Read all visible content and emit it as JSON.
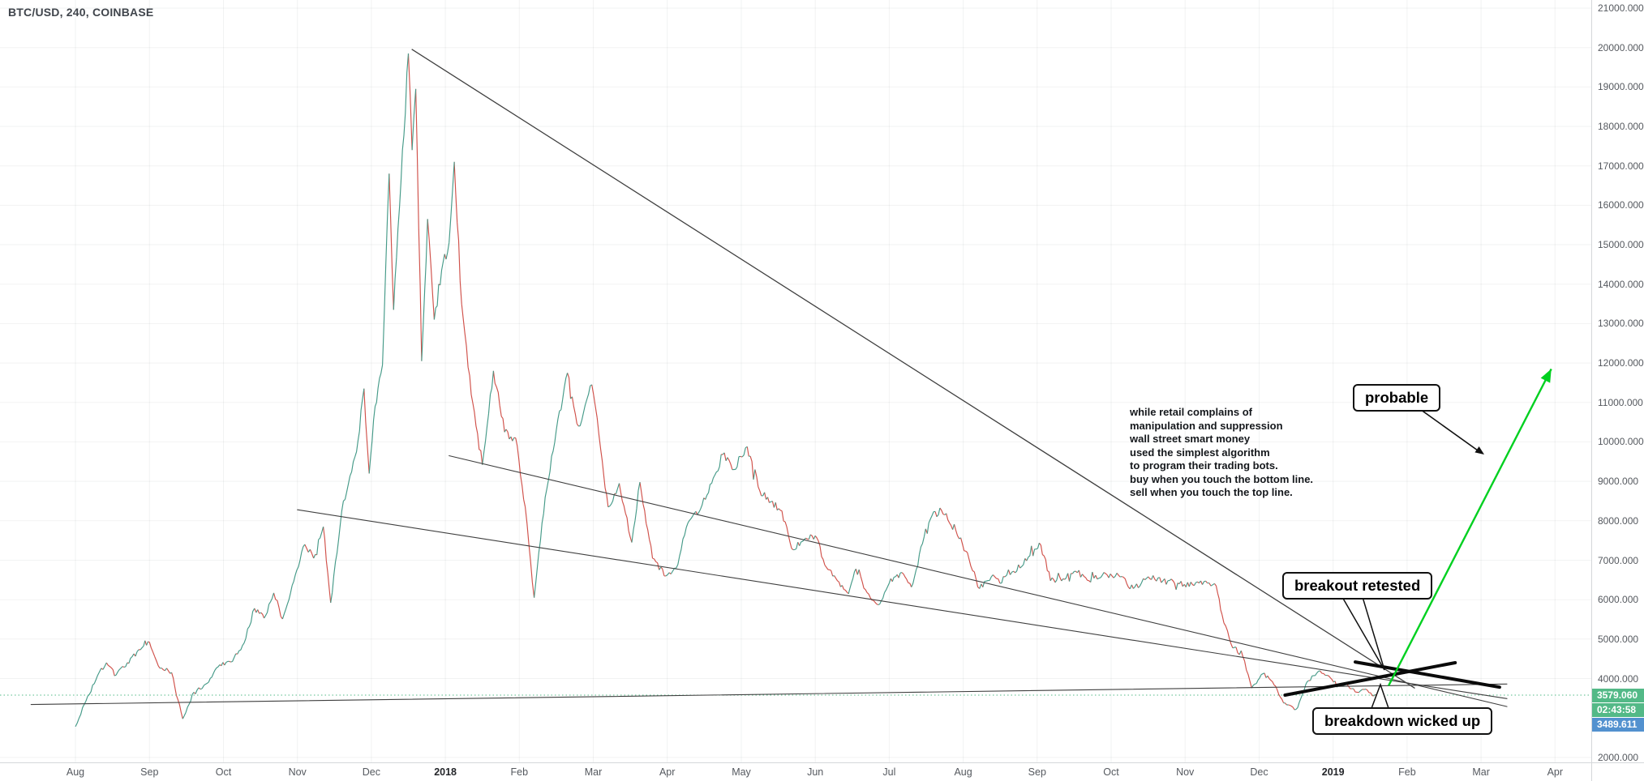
{
  "header": {
    "symbol_line": "BTC/USD, 240, COINBASE"
  },
  "colors": {
    "candle_up": "#459a88",
    "candle_down": "#d05049",
    "trendline_gray": "#3f3f3f",
    "trendline_black": "#0a0a0a",
    "arrow_green": "#00d020",
    "last_price_teal": "#53b987",
    "secondary_blue": "#5291cf",
    "axis_text": "#55595f",
    "grid": "rgba(42,46,57,0.06)"
  },
  "annotations": {
    "probable": "probable",
    "breakout": "breakout retested",
    "breakdown": "breakdown wicked up",
    "note_lines": [
      "while retail complains of",
      "manipulation and suppression",
      "wall street smart money",
      "used the simplest algorithm",
      "to program their trading bots.",
      "buy when you touch the bottom line.",
      "sell when you touch the top line."
    ]
  },
  "price_scale": {
    "last_price_label": "3579.060",
    "countdown_label": "02:43:58",
    "secondary_label": "3489.611",
    "ticks": [
      {
        "label": "21000.000",
        "p": 21000
      },
      {
        "label": "20000.000",
        "p": 20000
      },
      {
        "label": "19000.000",
        "p": 19000
      },
      {
        "label": "18000.000",
        "p": 18000
      },
      {
        "label": "17000.000",
        "p": 17000
      },
      {
        "label": "16000.000",
        "p": 16000
      },
      {
        "label": "15000.000",
        "p": 15000
      },
      {
        "label": "14000.000",
        "p": 14000
      },
      {
        "label": "13000.000",
        "p": 13000
      },
      {
        "label": "12000.000",
        "p": 12000
      },
      {
        "label": "11000.000",
        "p": 11000
      },
      {
        "label": "10000.000",
        "p": 10000
      },
      {
        "label": "9000.000",
        "p": 9000
      },
      {
        "label": "8000.000",
        "p": 8000
      },
      {
        "label": "7000.000",
        "p": 7000
      },
      {
        "label": "6000.000",
        "p": 6000
      },
      {
        "label": "5000.000",
        "p": 5000
      },
      {
        "label": "4000.000",
        "p": 4000
      },
      {
        "label": "2000.000",
        "p": 2000
      }
    ]
  },
  "time_scale": {
    "ticks": [
      {
        "label": "Aug",
        "m": 0
      },
      {
        "label": "Sep",
        "m": 1
      },
      {
        "label": "Oct",
        "m": 2
      },
      {
        "label": "Nov",
        "m": 3
      },
      {
        "label": "Dec",
        "m": 4
      },
      {
        "label": "2018",
        "m": 5,
        "strong": true
      },
      {
        "label": "Feb",
        "m": 6
      },
      {
        "label": "Mar",
        "m": 7
      },
      {
        "label": "Apr",
        "m": 8
      },
      {
        "label": "May",
        "m": 9
      },
      {
        "label": "Jun",
        "m": 10
      },
      {
        "label": "Jul",
        "m": 11
      },
      {
        "label": "Aug",
        "m": 12
      },
      {
        "label": "Sep",
        "m": 13
      },
      {
        "label": "Oct",
        "m": 14
      },
      {
        "label": "Nov",
        "m": 15
      },
      {
        "label": "Dec",
        "m": 16
      },
      {
        "label": "2019",
        "m": 17,
        "strong": true
      },
      {
        "label": "Feb",
        "m": 18
      },
      {
        "label": "Mar",
        "m": 19
      },
      {
        "label": "Apr",
        "m": 20
      }
    ]
  },
  "chart_data": {
    "type": "line",
    "style": "candlestick",
    "title": "BTC/USD, 240, COINBASE",
    "x_unit": "months since 2017-08-01",
    "xlim": [
      -1.02,
      20.49
    ],
    "ylim": [
      1874,
      21205
    ],
    "grid": "faint",
    "legend_position": "none",
    "last_price": 3579.06,
    "current_price_line": {
      "price": 3579.06,
      "style": "dotted",
      "color": "#53b987"
    },
    "series": [
      {
        "name": "BTC/USD",
        "points": [
          [
            0,
            2780
          ],
          [
            0.12,
            3350
          ],
          [
            0.3,
            4080
          ],
          [
            0.42,
            4400
          ],
          [
            0.55,
            4090
          ],
          [
            0.7,
            4400
          ],
          [
            0.9,
            4780
          ],
          [
            1.0,
            4920
          ],
          [
            1.12,
            4320
          ],
          [
            1.3,
            4150
          ],
          [
            1.45,
            2980
          ],
          [
            1.6,
            3650
          ],
          [
            1.78,
            3880
          ],
          [
            1.95,
            4350
          ],
          [
            2.1,
            4420
          ],
          [
            2.28,
            4900
          ],
          [
            2.42,
            5780
          ],
          [
            2.55,
            5530
          ],
          [
            2.68,
            6170
          ],
          [
            2.8,
            5510
          ],
          [
            2.95,
            6460
          ],
          [
            3.1,
            7400
          ],
          [
            3.22,
            7050
          ],
          [
            3.35,
            7850
          ],
          [
            3.45,
            5920
          ],
          [
            3.6,
            8250
          ],
          [
            3.8,
            9750
          ],
          [
            3.9,
            11350
          ],
          [
            3.97,
            9200
          ],
          [
            4.05,
            10900
          ],
          [
            4.15,
            11950
          ],
          [
            4.24,
            16800
          ],
          [
            4.3,
            13350
          ],
          [
            4.4,
            16600
          ],
          [
            4.5,
            19850
          ],
          [
            4.55,
            17400
          ],
          [
            4.6,
            18950
          ],
          [
            4.68,
            12050
          ],
          [
            4.76,
            15650
          ],
          [
            4.85,
            13100
          ],
          [
            4.95,
            14350
          ],
          [
            5.05,
            15050
          ],
          [
            5.12,
            17100
          ],
          [
            5.22,
            13500
          ],
          [
            5.35,
            11200
          ],
          [
            5.5,
            9420
          ],
          [
            5.65,
            11800
          ],
          [
            5.8,
            10250
          ],
          [
            5.95,
            10100
          ],
          [
            6.08,
            8350
          ],
          [
            6.2,
            6050
          ],
          [
            6.35,
            8600
          ],
          [
            6.5,
            10300
          ],
          [
            6.65,
            11750
          ],
          [
            6.8,
            10400
          ],
          [
            6.98,
            11450
          ],
          [
            7.1,
            9800
          ],
          [
            7.2,
            8350
          ],
          [
            7.35,
            8950
          ],
          [
            7.52,
            7450
          ],
          [
            7.63,
            8980
          ],
          [
            7.8,
            7050
          ],
          [
            7.98,
            6600
          ],
          [
            8.12,
            6800
          ],
          [
            8.28,
            7950
          ],
          [
            8.45,
            8300
          ],
          [
            8.6,
            8950
          ],
          [
            8.75,
            9680
          ],
          [
            8.9,
            9300
          ],
          [
            9.08,
            9880
          ],
          [
            9.25,
            8760
          ],
          [
            9.4,
            8480
          ],
          [
            9.55,
            8250
          ],
          [
            9.68,
            7300
          ],
          [
            9.85,
            7520
          ],
          [
            10.0,
            7620
          ],
          [
            10.15,
            6820
          ],
          [
            10.3,
            6480
          ],
          [
            10.45,
            6150
          ],
          [
            10.55,
            6780
          ],
          [
            10.7,
            6180
          ],
          [
            10.85,
            5870
          ],
          [
            11.0,
            6420
          ],
          [
            11.15,
            6680
          ],
          [
            11.3,
            6320
          ],
          [
            11.45,
            7420
          ],
          [
            11.6,
            8230
          ],
          [
            11.75,
            8150
          ],
          [
            11.9,
            7760
          ],
          [
            12.08,
            7020
          ],
          [
            12.22,
            6280
          ],
          [
            12.38,
            6580
          ],
          [
            12.52,
            6420
          ],
          [
            12.68,
            6720
          ],
          [
            12.88,
            7080
          ],
          [
            13.05,
            7380
          ],
          [
            13.18,
            6480
          ],
          [
            13.35,
            6530
          ],
          [
            13.52,
            6720
          ],
          [
            13.7,
            6480
          ],
          [
            13.88,
            6620
          ],
          [
            14.1,
            6620
          ],
          [
            14.3,
            6280
          ],
          [
            14.5,
            6580
          ],
          [
            14.7,
            6480
          ],
          [
            14.9,
            6420
          ],
          [
            15.1,
            6380
          ],
          [
            15.3,
            6420
          ],
          [
            15.42,
            6350
          ],
          [
            15.5,
            5620
          ],
          [
            15.62,
            4880
          ],
          [
            15.78,
            4560
          ],
          [
            15.9,
            3760
          ],
          [
            16.05,
            4120
          ],
          [
            16.18,
            3920
          ],
          [
            16.33,
            3380
          ],
          [
            16.5,
            3220
          ],
          [
            16.65,
            3920
          ],
          [
            16.8,
            4180
          ],
          [
            16.92,
            4080
          ],
          [
            17.05,
            3780
          ],
          [
            17.18,
            3880
          ],
          [
            17.3,
            3660
          ],
          [
            17.42,
            3720
          ],
          [
            17.55,
            3560
          ],
          [
            17.65,
            3579
          ]
        ]
      }
    ],
    "trendlines": [
      {
        "name": "descending-from-ath",
        "from": [
          4.55,
          19950
        ],
        "to": [
          18.1,
          3760
        ],
        "width": 1.3,
        "color": "#3f3f3f"
      },
      {
        "name": "descending-mid",
        "from": [
          5.05,
          9650
        ],
        "to": [
          19.35,
          3290
        ],
        "width": 1.1,
        "color": "#3f3f3f"
      },
      {
        "name": "descending-low",
        "from": [
          3.0,
          8280
        ],
        "to": [
          19.35,
          3490
        ],
        "width": 1.1,
        "color": "#3f3f3f"
      },
      {
        "name": "ascending-support",
        "from": [
          -0.6,
          3340
        ],
        "to": [
          19.35,
          3860
        ],
        "width": 1.1,
        "color": "#3f3f3f"
      },
      {
        "name": "black-ascending-thick",
        "from": [
          16.35,
          3580
        ],
        "to": [
          18.65,
          4400
        ],
        "width": 4,
        "color": "#0a0a0a"
      },
      {
        "name": "black-descending-thick",
        "from": [
          17.3,
          4420
        ],
        "to": [
          19.25,
          3780
        ],
        "width": 4,
        "color": "#0a0a0a"
      }
    ],
    "arrow": {
      "name": "probable-path-arrow",
      "from": [
        17.75,
        3820
      ],
      "to": [
        19.95,
        11850
      ],
      "color": "#00d020"
    }
  }
}
